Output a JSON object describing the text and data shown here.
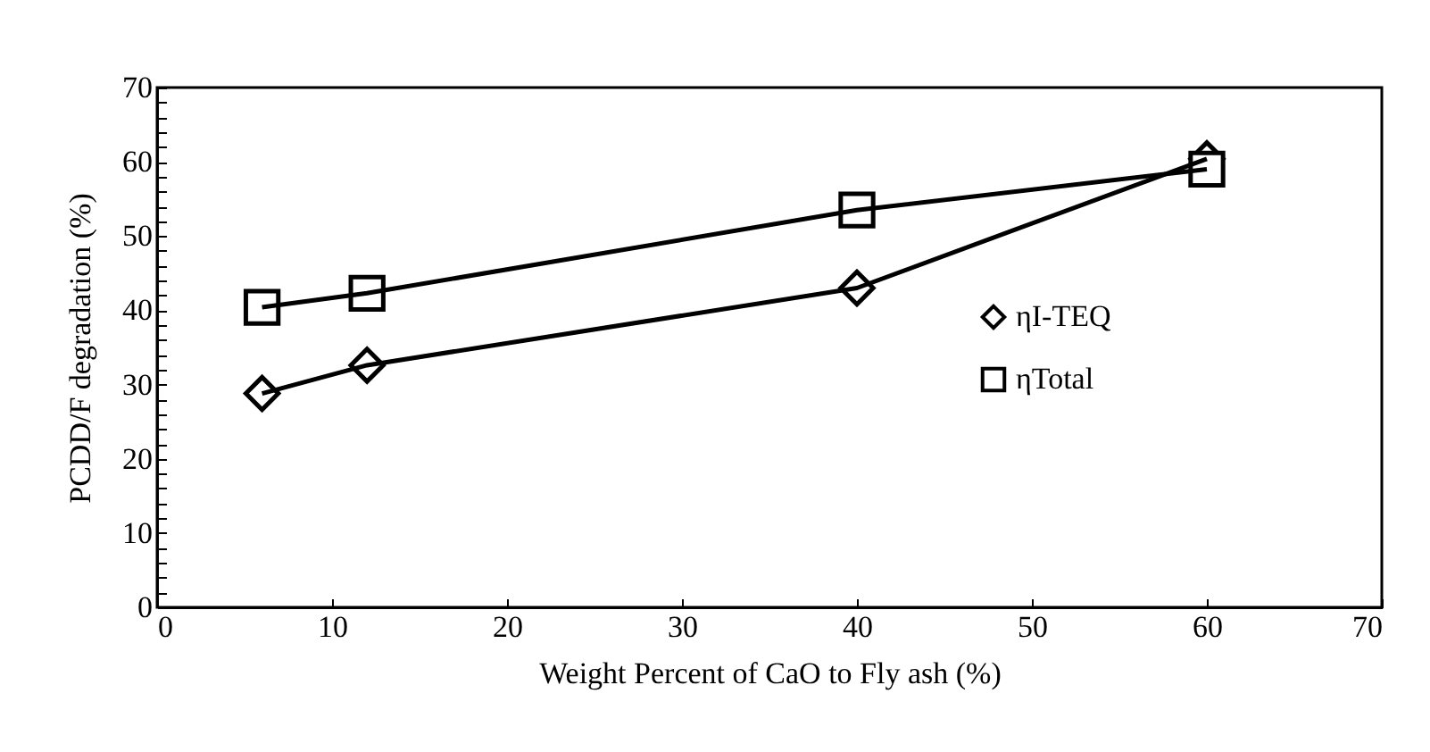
{
  "chart_data": {
    "type": "line",
    "xlabel": "Weight Percent of CaO to Fly ash (%)",
    "ylabel": "PCDD/F degradation (%)",
    "x": [
      6,
      12,
      40,
      60
    ],
    "series": [
      {
        "name": "ηI-TEQ",
        "color": "#000000",
        "marker": "diamond",
        "values": [
          28.8,
          32.6,
          43.0,
          60.4
        ]
      },
      {
        "name": "ηTotal",
        "color": "#000000",
        "marker": "square",
        "values": [
          40.4,
          42.3,
          53.5,
          59.0
        ]
      }
    ],
    "xlim": [
      0,
      70
    ],
    "xticks": [
      0,
      10,
      20,
      30,
      40,
      50,
      60,
      70
    ],
    "ylim": [
      0,
      70
    ],
    "yticks": [
      0,
      {
        "value": 2,
        "label": null
      },
      {
        "value": 4,
        "label": null
      },
      {
        "value": 6,
        "label": null
      },
      {
        "value": 8,
        "label": null
      },
      10,
      {
        "value": 12,
        "label": null
      },
      {
        "value": 14,
        "label": null
      },
      {
        "value": 16,
        "label": null
      },
      {
        "value": 18,
        "label": null
      },
      20,
      {
        "value": 22,
        "label": null
      },
      {
        "value": 24,
        "label": null
      },
      {
        "value": 26,
        "label": null
      },
      {
        "value": 28,
        "label": null
      },
      30,
      {
        "value": 32,
        "label": null
      },
      {
        "value": 34,
        "label": null
      },
      {
        "value": 36,
        "label": null
      },
      {
        "value": 38,
        "label": null
      },
      40,
      {
        "value": 42,
        "label": null
      },
      {
        "value": 44,
        "label": null
      },
      {
        "value": 46,
        "label": null
      },
      {
        "value": 48,
        "label": null
      },
      50,
      {
        "value": 52,
        "label": null
      },
      {
        "value": 54,
        "label": null
      },
      {
        "value": 56,
        "label": null
      },
      {
        "value": 58,
        "label": null
      },
      60,
      {
        "value": 62,
        "label": null
      },
      {
        "value": 64,
        "label": null
      },
      {
        "value": 66,
        "label": null
      },
      {
        "value": 68,
        "label": null
      },
      70
    ],
    "grid": false,
    "legend": "right",
    "line_style": "solid"
  }
}
